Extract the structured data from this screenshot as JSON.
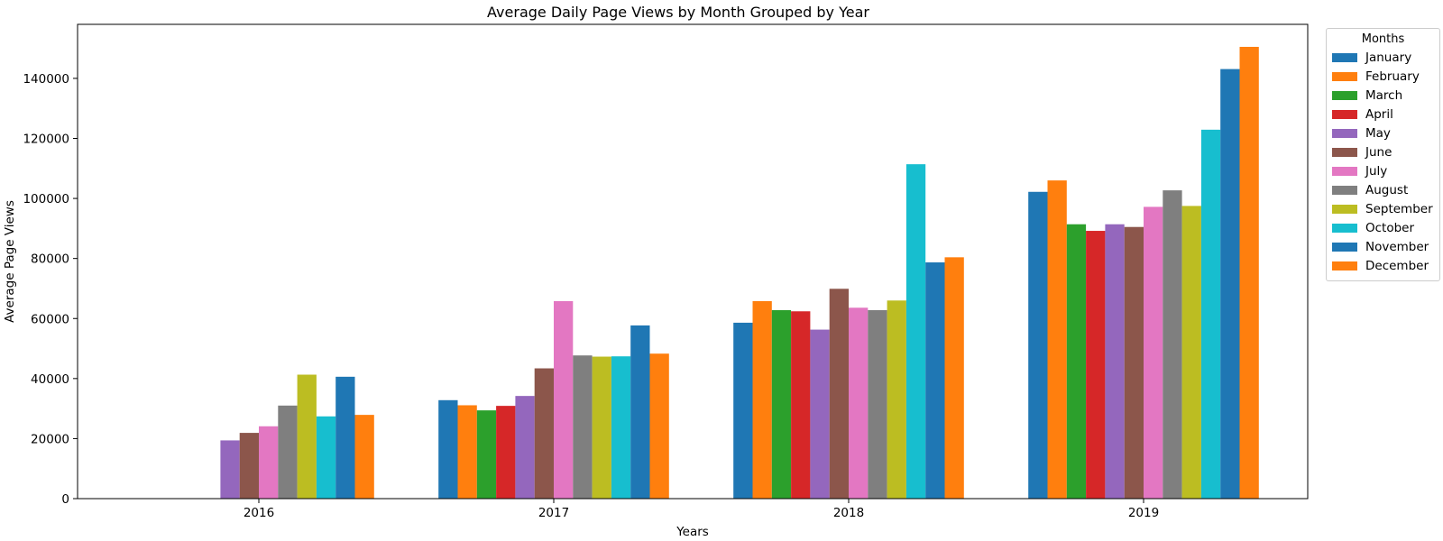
{
  "chart_data": {
    "type": "bar",
    "title": "Average Daily Page Views by Month Grouped by Year",
    "xlabel": "Years",
    "ylabel": "Average Page Views",
    "categories": [
      "2016",
      "2017",
      "2018",
      "2019"
    ],
    "ylim": [
      0,
      158000
    ],
    "yticks": [
      0,
      20000,
      40000,
      60000,
      80000,
      100000,
      120000,
      140000
    ],
    "legend_title": "Months",
    "legend_position": "outside-right",
    "grid": false,
    "series": [
      {
        "name": "January",
        "color": "#1f77b4",
        "values": [
          null,
          32800,
          58600,
          102200
        ]
      },
      {
        "name": "February",
        "color": "#ff7f0e",
        "values": [
          null,
          31100,
          65800,
          106000
        ]
      },
      {
        "name": "March",
        "color": "#2ca02c",
        "values": [
          null,
          29400,
          62800,
          91400
        ]
      },
      {
        "name": "April",
        "color": "#d62728",
        "values": [
          null,
          30900,
          62400,
          89200
        ]
      },
      {
        "name": "May",
        "color": "#9467bd",
        "values": [
          19400,
          34200,
          56300,
          91400
        ]
      },
      {
        "name": "June",
        "color": "#8c564b",
        "values": [
          21900,
          43400,
          69900,
          90500
        ]
      },
      {
        "name": "July",
        "color": "#e377c2",
        "values": [
          24100,
          65800,
          63600,
          97200
        ]
      },
      {
        "name": "August",
        "color": "#7f7f7f",
        "values": [
          31000,
          47700,
          62800,
          102700
        ]
      },
      {
        "name": "September",
        "color": "#bcbd22",
        "values": [
          41300,
          47300,
          66000,
          97500
        ]
      },
      {
        "name": "October",
        "color": "#17becf",
        "values": [
          27400,
          47400,
          111400,
          122900
        ]
      },
      {
        "name": "November",
        "color": "#1f77b4",
        "values": [
          40600,
          57700,
          78700,
          143100
        ]
      },
      {
        "name": "December",
        "color": "#ff7f0e",
        "values": [
          27900,
          48300,
          80400,
          150500
        ]
      }
    ]
  }
}
